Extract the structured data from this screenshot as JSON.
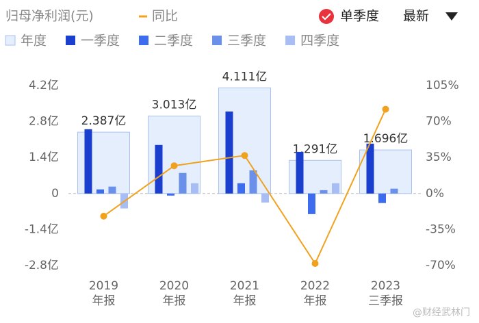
{
  "chart_data": {
    "type": "bar",
    "title": "归母净利润(元)",
    "line_legend": "同比",
    "toggle": "单季度",
    "sort": "最新",
    "watermark": "@财经武林门",
    "categories": [
      [
        "2019",
        "年报"
      ],
      [
        "2020",
        "年报"
      ],
      [
        "2021",
        "年报"
      ],
      [
        "2022",
        "年报"
      ],
      [
        "2023",
        "三季报"
      ]
    ],
    "series": [
      {
        "name": "年度",
        "color": "#e4eefc",
        "values": [
          2.387,
          3.013,
          4.111,
          1.291,
          1.696
        ],
        "value_labels": [
          "2.387亿",
          "3.013亿",
          "4.111亿",
          "1.291亿",
          "1.696亿"
        ]
      },
      {
        "name": "一季度",
        "color": "#1a3fcf",
        "values": [
          2.5,
          1.89,
          3.19,
          1.62,
          1.94
        ]
      },
      {
        "name": "二季度",
        "color": "#3d6cef",
        "values": [
          0.16,
          -0.08,
          0.4,
          -0.8,
          -0.37
        ]
      },
      {
        "name": "三季度",
        "color": "#6b90ea",
        "values": [
          0.27,
          0.8,
          0.9,
          0.13,
          0.19
        ]
      },
      {
        "name": "四季度",
        "color": "#a7bdf3",
        "values": [
          -0.58,
          0.4,
          -0.35,
          0.4,
          null
        ]
      },
      {
        "name": "同比",
        "type": "line",
        "axis": "y2",
        "color": "#f0a21e",
        "values": [
          -22,
          27,
          37,
          -68,
          82
        ]
      }
    ],
    "ylim": [
      -2.8,
      4.2
    ],
    "yticks": [
      {
        "value": -2.8,
        "label": "-2.8亿"
      },
      {
        "value": -1.4,
        "label": "-1.4亿"
      },
      0,
      {
        "value": 1.4,
        "label": "1.4亿"
      },
      {
        "value": 2.8,
        "label": "2.8亿"
      },
      {
        "value": 4.2,
        "label": "4.2亿"
      }
    ],
    "y2lim": [
      -70,
      105
    ],
    "y2ticks": [
      {
        "value": -70,
        "label": "-70%"
      },
      {
        "value": -35,
        "label": "-35%"
      },
      {
        "value": 0,
        "label": "0%"
      },
      {
        "value": 35,
        "label": "35%"
      },
      {
        "value": 70,
        "label": "70%"
      },
      {
        "value": 105,
        "label": "105%"
      }
    ]
  }
}
